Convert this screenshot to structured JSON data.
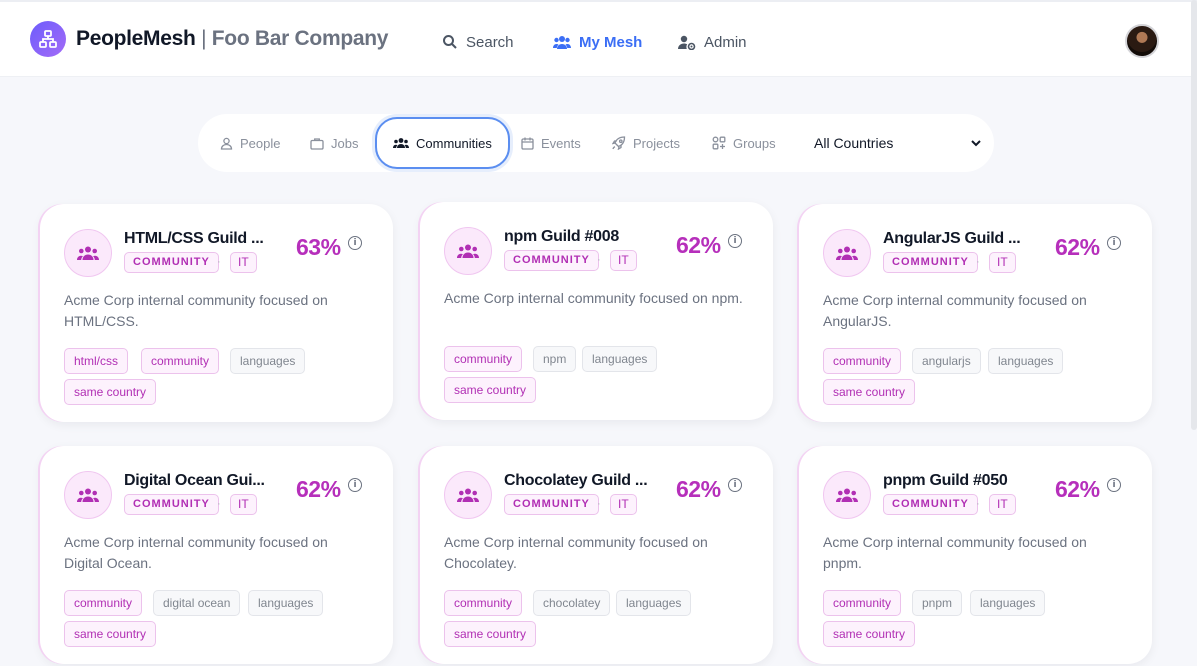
{
  "header": {
    "brand_name": "PeopleMesh",
    "brand_sep": " | ",
    "company": "Foo Bar Company",
    "nav": [
      {
        "label": "Search",
        "icon": "search-icon",
        "active": false
      },
      {
        "label": "My Mesh",
        "icon": "users-icon",
        "active": true
      },
      {
        "label": "Admin",
        "icon": "user-gear-icon",
        "active": false
      }
    ],
    "accent_color": "#3b6ef5"
  },
  "filters": {
    "tabs": [
      {
        "label": "People",
        "icon": "person-icon",
        "active": false
      },
      {
        "label": "Jobs",
        "icon": "briefcase-icon",
        "active": false
      },
      {
        "label": "Communities",
        "icon": "group-icon",
        "active": true
      },
      {
        "label": "Events",
        "icon": "calendar-icon",
        "active": false
      },
      {
        "label": "Projects",
        "icon": "rocket-icon",
        "active": false
      },
      {
        "label": "Groups",
        "icon": "shapes-icon",
        "active": false
      }
    ],
    "country": {
      "selected": "All Countries"
    }
  },
  "cards": [
    {
      "title": "HTML/CSS Guild ...",
      "type": "COMMUNITY",
      "dot": "·",
      "region": "IT",
      "score": "63%",
      "description": "Acme Corp internal community focused on HTML/CSS.",
      "chips": [
        {
          "label": "html/css",
          "style": "hi"
        },
        {
          "label": "community",
          "style": "hi"
        },
        {
          "label": "languages",
          "style": "lo"
        },
        {
          "label": "same country",
          "style": "hi"
        }
      ]
    },
    {
      "title": "npm Guild #008",
      "type": "COMMUNITY",
      "dot": "·",
      "region": "IT",
      "score": "62%",
      "description": "Acme Corp internal community focused on npm.",
      "chips": [
        {
          "label": "community",
          "style": "hi"
        },
        {
          "label": "npm",
          "style": "lo"
        },
        {
          "label": "languages",
          "style": "lo"
        },
        {
          "label": "same country",
          "style": "hi"
        }
      ]
    },
    {
      "title": "AngularJS Guild ...",
      "type": "COMMUNITY",
      "dot": "·",
      "region": "IT",
      "score": "62%",
      "description": "Acme Corp internal community focused on AngularJS.",
      "chips": [
        {
          "label": "community",
          "style": "hi"
        },
        {
          "label": "angularjs",
          "style": "lo"
        },
        {
          "label": "languages",
          "style": "lo"
        },
        {
          "label": "same country",
          "style": "hi"
        }
      ]
    },
    {
      "title": "Digital Ocean Gui...",
      "type": "COMMUNITY",
      "dot": "·",
      "region": "IT",
      "score": "62%",
      "description": "Acme Corp internal community focused on Digital Ocean.",
      "chips": [
        {
          "label": "community",
          "style": "hi"
        },
        {
          "label": "digital ocean",
          "style": "lo"
        },
        {
          "label": "languages",
          "style": "lo"
        },
        {
          "label": "same country",
          "style": "hi"
        }
      ]
    },
    {
      "title": "Chocolatey Guild ...",
      "type": "COMMUNITY",
      "dot": "·",
      "region": "IT",
      "score": "62%",
      "description": "Acme Corp internal community focused on Chocolatey.",
      "chips": [
        {
          "label": "community",
          "style": "hi"
        },
        {
          "label": "chocolatey",
          "style": "lo"
        },
        {
          "label": "languages",
          "style": "lo"
        },
        {
          "label": "same country",
          "style": "hi"
        }
      ]
    },
    {
      "title": "pnpm Guild #050",
      "type": "COMMUNITY",
      "dot": "·",
      "region": "IT",
      "score": "62%",
      "description": "Acme Corp internal community focused on pnpm.",
      "chips": [
        {
          "label": "community",
          "style": "hi"
        },
        {
          "label": "pnpm",
          "style": "lo"
        },
        {
          "label": "languages",
          "style": "lo"
        },
        {
          "label": "same country",
          "style": "hi"
        }
      ]
    }
  ],
  "colors": {
    "score": "#b62fbb",
    "chip_accent": "#b12fb4"
  }
}
